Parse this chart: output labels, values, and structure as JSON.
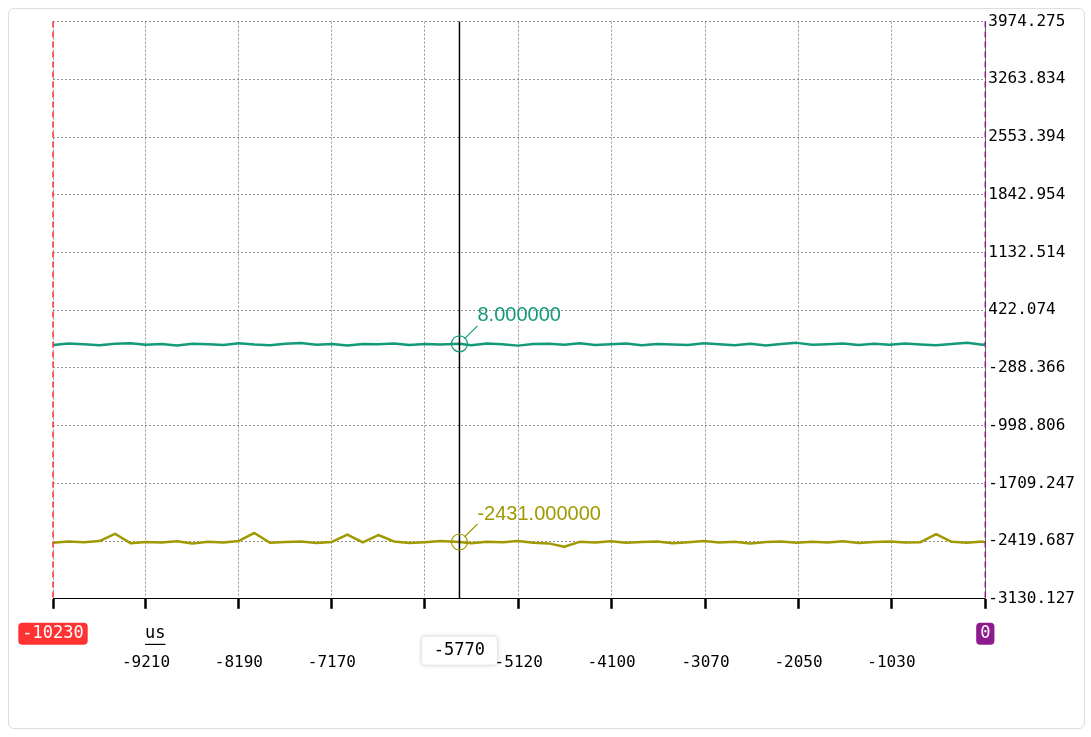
{
  "chart_data": {
    "type": "line",
    "xlabel": "us",
    "x": [
      -10230,
      -10060,
      -9890,
      -9720,
      -9550,
      -9380,
      -9210,
      -9040,
      -8870,
      -8700,
      -8530,
      -8360,
      -8190,
      -8020,
      -7850,
      -7680,
      -7510,
      -7340,
      -7170,
      -7000,
      -6830,
      -6660,
      -6490,
      -6320,
      -6150,
      -5980,
      -5770,
      -5640,
      -5470,
      -5300,
      -5130,
      -4960,
      -4790,
      -4620,
      -4450,
      -4280,
      -4110,
      -3940,
      -3770,
      -3600,
      -3430,
      -3260,
      -3090,
      -2920,
      -2750,
      -2580,
      -2410,
      -2240,
      -2070,
      -1900,
      -1730,
      -1560,
      -1390,
      -1220,
      -1050,
      -880,
      -710,
      -540,
      -370,
      -200,
      -30,
      0
    ],
    "series": [
      {
        "color": "#139a78",
        "values": [
          -5,
          12,
          3,
          -10,
          8,
          15,
          -3,
          6,
          -12,
          10,
          4,
          -6,
          14,
          0,
          -8,
          9,
          18,
          -4,
          5,
          -11,
          7,
          2,
          13,
          -7,
          6,
          1,
          8,
          -9,
          11,
          3,
          -14,
          5,
          9,
          -2,
          16,
          -6,
          4,
          12,
          -10,
          7,
          0,
          -5,
          15,
          3,
          -8,
          10,
          -13,
          6,
          20,
          -3,
          2,
          11,
          -7,
          8,
          -4,
          13,
          1,
          -9,
          6,
          22,
          -2,
          4
        ]
      },
      {
        "color": "#a09a00",
        "values": [
          -2440,
          -2425,
          -2435,
          -2420,
          -2330,
          -2445,
          -2430,
          -2438,
          -2422,
          -2450,
          -2428,
          -2436,
          -2418,
          -2320,
          -2440,
          -2432,
          -2426,
          -2444,
          -2430,
          -2340,
          -2437,
          -2345,
          -2424,
          -2442,
          -2433,
          -2420,
          -2431,
          -2446,
          -2427,
          -2435,
          -2418,
          -2439,
          -2448,
          -2490,
          -2429,
          -2436,
          -2422,
          -2441,
          -2430,
          -2426,
          -2445,
          -2433,
          -2419,
          -2438,
          -2427,
          -2450,
          -2432,
          -2424,
          -2440,
          -2429,
          -2436,
          -2421,
          -2443,
          -2430,
          -2425,
          -2438,
          -2433,
          -2335,
          -2428,
          -2441,
          -2426,
          -2434
        ]
      }
    ],
    "xlim": [
      -10230,
      0
    ],
    "xticks": [
      {
        "value": -10230,
        "label": null
      },
      -9210,
      -8190,
      -7170,
      {
        "value": -6150,
        "label": null
      },
      -5120,
      -4100,
      -3070,
      -2050,
      -1030,
      {
        "value": 0,
        "label": null
      }
    ],
    "ylim": [
      -3130.127,
      3974.275
    ],
    "yticks": [
      -3130.127,
      -2419.687,
      -1709.247,
      -998.806,
      -288.366,
      422.074,
      1132.514,
      1842.954,
      2553.394,
      3263.834,
      3974.275
    ],
    "ref_lines": [
      {
        "axis": "x",
        "value": -10230,
        "label": "-10230",
        "color": "#ff3333",
        "line_style": "dashed"
      },
      {
        "axis": "x",
        "value": 0,
        "label": "0",
        "color": "#8e1b8e",
        "line_style": "dashed"
      },
      {
        "axis": "x",
        "value": -5770,
        "label": "-5770",
        "color": "#000000",
        "line_style": "solid"
      }
    ],
    "annotations": [
      {
        "text": "8.000000",
        "x": -5770,
        "y": 8
      },
      {
        "text": "-2431.000000",
        "x": -5770,
        "y": -2431
      }
    ],
    "grid": true,
    "legend": false,
    "marker": "none",
    "line_style": "solid"
  }
}
